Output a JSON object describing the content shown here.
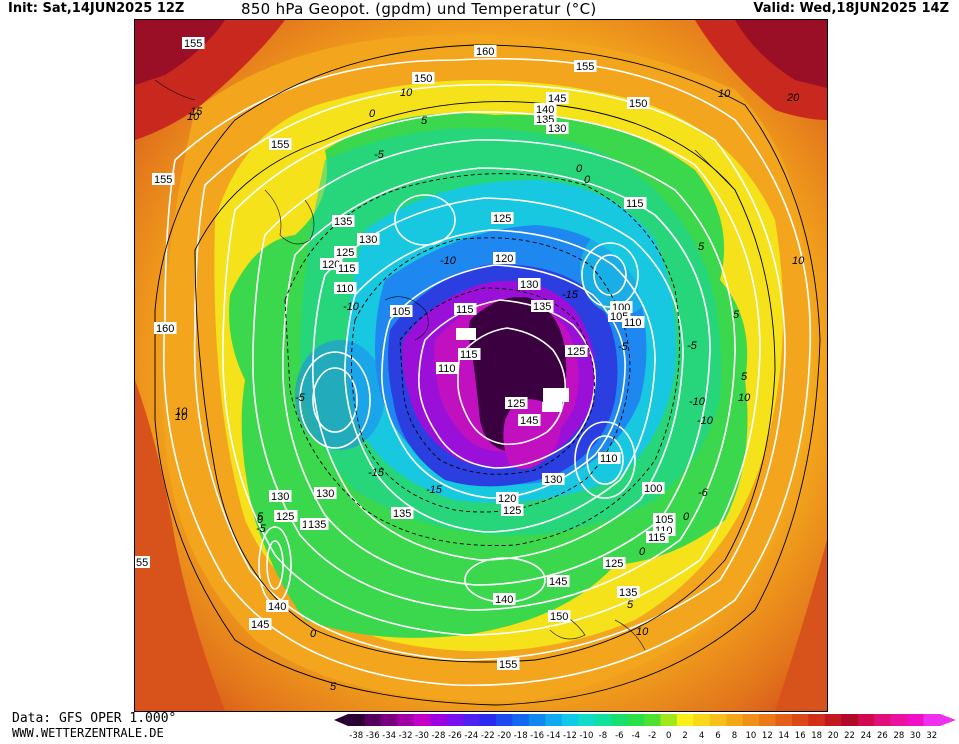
{
  "header": {
    "init_label": "Init: Sat,14JUN2025 12Z",
    "title": "850 hPa Geopot. (gpdm) und Temperatur (°C)",
    "valid_label": "Valid: Wed,18JUN2025 14Z"
  },
  "footer": {
    "data_source": "Data: GFS OPER 1.000°",
    "website": "WWW.WETTERZENTRALE.DE"
  },
  "map": {
    "projection": "polar stereographic, north pole",
    "geopotential_labels": [
      "155",
      "160",
      "150",
      "155",
      "145",
      "140",
      "135",
      "130",
      "150",
      "155",
      "155",
      "115",
      "135",
      "130",
      "125",
      "120",
      "115",
      "110",
      "125",
      "120",
      "130",
      "135",
      "115",
      "100",
      "105",
      "110",
      "105",
      "115",
      "125",
      "110",
      "125",
      "145",
      "110",
      "100",
      "105",
      "110",
      "115",
      "120",
      "130",
      "135",
      "130",
      "120",
      "125",
      "115",
      "145",
      "140",
      "150",
      "125",
      "135",
      "155",
      "130",
      "125",
      "135",
      "140",
      "145",
      "160",
      "55"
    ],
    "temperature_labels": [
      "10",
      "5",
      "0",
      "-5",
      "-10",
      "-15",
      "-5",
      "-10",
      "-15",
      "0",
      "5",
      "10",
      "-5",
      "-10",
      "10",
      "5",
      "0",
      "-5",
      "-10",
      "-6",
      "0",
      "5",
      "10",
      "-15",
      "5",
      "0",
      "-5",
      "0",
      "5",
      "10",
      "10",
      "20",
      "15",
      "10",
      "5",
      "10",
      "0"
    ],
    "colors": {
      "very_cold": "#3a0040",
      "cold_purple": "#9b10d8",
      "blue": "#2b3fe0",
      "light_blue": "#1fa0ea",
      "cyan": "#18d6c4",
      "green": "#3bd84e",
      "yellow": "#f5e21a",
      "orange": "#f3a61d",
      "dark_orange": "#e2741b",
      "red": "#c9281e",
      "dark_red": "#9a0f25"
    }
  },
  "legend": {
    "ticks": [
      "-38",
      "-36",
      "-34",
      "-32",
      "-30",
      "-28",
      "-26",
      "-24",
      "-22",
      "-20",
      "-18",
      "-16",
      "-14",
      "-12",
      "-10",
      "-8",
      "-6",
      "-4",
      "-2",
      "0",
      "2",
      "4",
      "6",
      "8",
      "10",
      "12",
      "14",
      "16",
      "18",
      "20",
      "22",
      "24",
      "26",
      "28",
      "30",
      "32"
    ],
    "colors": [
      "#2b0032",
      "#52005c",
      "#7a007f",
      "#a000a6",
      "#c400c8",
      "#9e00e0",
      "#7a10f0",
      "#5020f0",
      "#2a2af0",
      "#1e48f0",
      "#1468f0",
      "#1088f0",
      "#10aaf0",
      "#10c8e8",
      "#10dcc8",
      "#10e0a0",
      "#18e070",
      "#28e048",
      "#50e030",
      "#a0e81a",
      "#f8f018",
      "#f8d818",
      "#f8c018",
      "#f4a818",
      "#f09018",
      "#ec7818",
      "#e46018",
      "#dc4818",
      "#d03018",
      "#c01a20",
      "#b00a28",
      "#d00a50",
      "#e01078",
      "#ec10a0",
      "#f010c8",
      "#f030f0"
    ]
  }
}
